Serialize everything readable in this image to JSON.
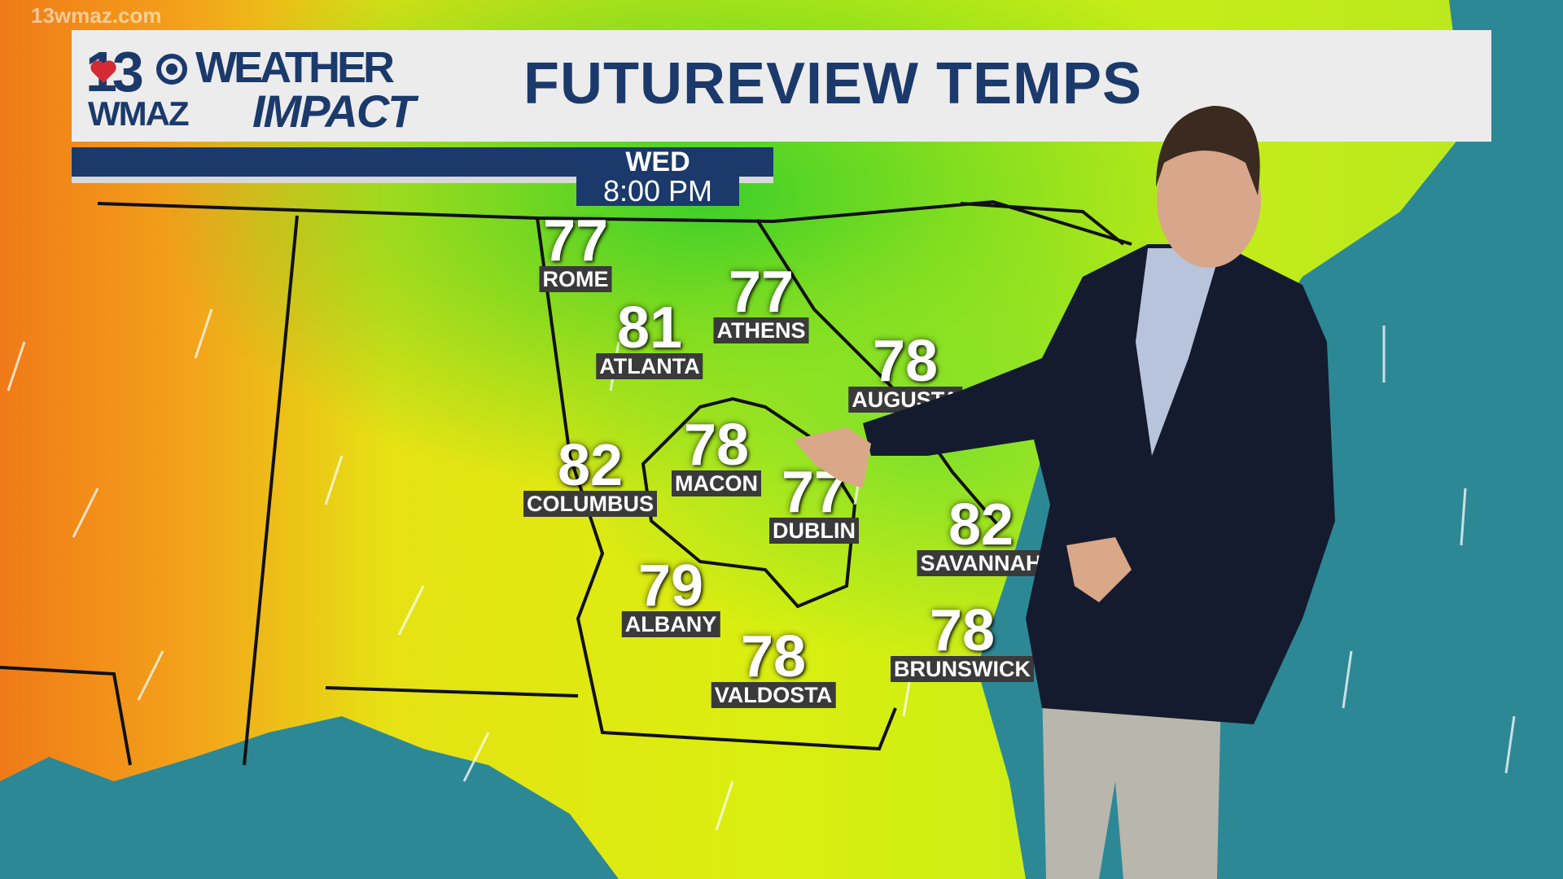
{
  "header": {
    "station_number": "13",
    "station_call": "WMAZ",
    "brand_line1": "WEATHER",
    "brand_line2": "IMPACT",
    "title": "FUTUREVIEW TEMPS",
    "watermark": "13wmaz.com"
  },
  "timestamp": {
    "day": "WED",
    "time": "8:00 PM"
  },
  "cities": [
    {
      "name": "ROME",
      "temp": "77"
    },
    {
      "name": "ATHENS",
      "temp": "77"
    },
    {
      "name": "ATLANTA",
      "temp": "81"
    },
    {
      "name": "AUGUSTA",
      "temp": "78"
    },
    {
      "name": "MACON",
      "temp": "78"
    },
    {
      "name": "COLUMBUS",
      "temp": "82"
    },
    {
      "name": "DUBLIN",
      "temp": "77"
    },
    {
      "name": "SAVANNAH",
      "temp": "82"
    },
    {
      "name": "ALBANY",
      "temp": "79"
    },
    {
      "name": "VALDOSTA",
      "temp": "78"
    },
    {
      "name": "BRUNSWICK",
      "temp": "78"
    }
  ],
  "colors": {
    "brand_navy": "#1b3a6b",
    "heart_red": "#d42a36",
    "ocean": "#2d8896",
    "warm": "#f08a1c",
    "mild": "#d8ee10",
    "cool": "#58d22a"
  }
}
